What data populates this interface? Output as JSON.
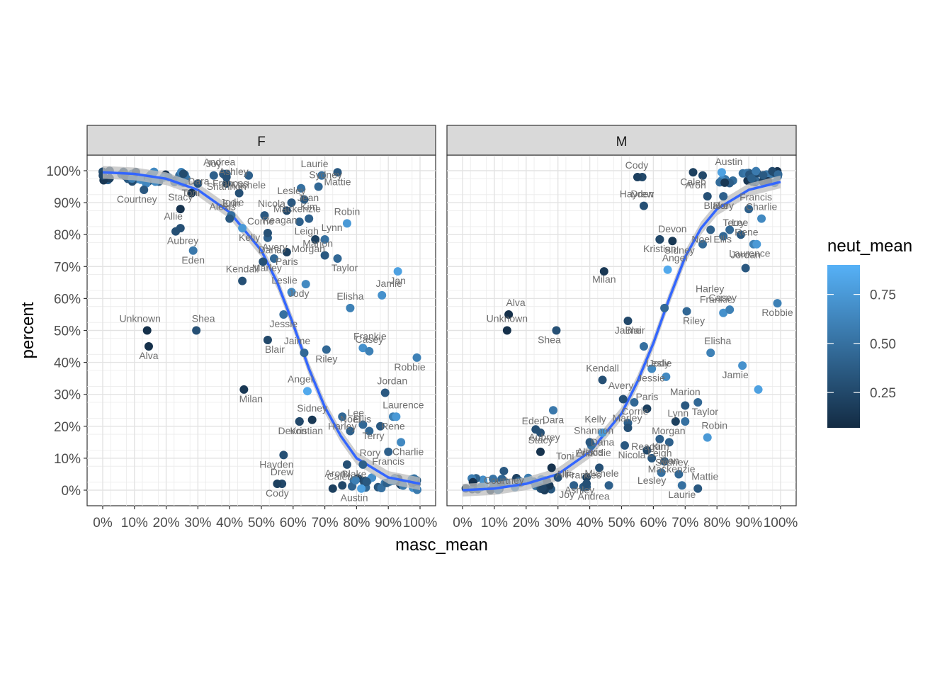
{
  "chart_data": {
    "type": "scatter",
    "xlabel": "masc_mean",
    "ylabel": "percent",
    "xlim": [
      0,
      1
    ],
    "ylim": [
      0,
      1
    ],
    "xticks": [
      "0%",
      "10%",
      "20%",
      "30%",
      "40%",
      "50%",
      "60%",
      "70%",
      "80%",
      "90%",
      "100%"
    ],
    "yticks": [
      "0%",
      "10%",
      "20%",
      "30%",
      "40%",
      "50%",
      "60%",
      "70%",
      "80%",
      "90%",
      "100%"
    ],
    "grid": true,
    "facets": [
      "F",
      "M"
    ],
    "legend": {
      "title": "neut_mean",
      "position": "right",
      "breaks": [
        "0.25",
        "0.50",
        "0.75"
      ],
      "break_values": [
        0.25,
        0.5,
        0.75
      ],
      "range": [
        0.07,
        0.9
      ],
      "color_low": "#132B43",
      "color_high": "#56B1F7"
    },
    "smooth": {
      "color": "#3366FF",
      "band_color": "#bdbdbd",
      "F": [
        [
          0.0,
          0.995
        ],
        [
          0.1,
          0.99
        ],
        [
          0.2,
          0.975
        ],
        [
          0.3,
          0.94
        ],
        [
          0.4,
          0.87
        ],
        [
          0.5,
          0.75
        ],
        [
          0.55,
          0.65
        ],
        [
          0.6,
          0.52
        ],
        [
          0.65,
          0.38
        ],
        [
          0.7,
          0.26
        ],
        [
          0.75,
          0.17
        ],
        [
          0.8,
          0.1
        ],
        [
          0.9,
          0.04
        ],
        [
          1.0,
          0.02
        ]
      ],
      "M": [
        [
          0.0,
          0.0
        ],
        [
          0.1,
          0.005
        ],
        [
          0.2,
          0.02
        ],
        [
          0.3,
          0.05
        ],
        [
          0.4,
          0.12
        ],
        [
          0.5,
          0.24
        ],
        [
          0.55,
          0.34
        ],
        [
          0.6,
          0.46
        ],
        [
          0.65,
          0.6
        ],
        [
          0.7,
          0.73
        ],
        [
          0.75,
          0.82
        ],
        [
          0.8,
          0.88
        ],
        [
          0.9,
          0.94
        ],
        [
          1.0,
          0.965
        ]
      ]
    },
    "labeled_points": [
      {
        "name": "Unknown",
        "x": 0.14,
        "y": 0.5,
        "neut": 0.1
      },
      {
        "name": "Alva",
        "x": 0.145,
        "y": 0.45,
        "neut": 0.1
      },
      {
        "name": "Shea",
        "x": 0.295,
        "y": 0.5,
        "neut": 0.3
      },
      {
        "name": "Courtney",
        "x": 0.13,
        "y": 0.94,
        "neut": 0.35
      },
      {
        "name": "Stacy",
        "x": 0.245,
        "y": 0.88,
        "neut": 0.12
      },
      {
        "name": "Aubrey",
        "x": 0.23,
        "y": 0.81,
        "neut": 0.3
      },
      {
        "name": "Allie",
        "x": 0.245,
        "y": 0.82,
        "neut": 0.3
      },
      {
        "name": "Eden",
        "x": 0.285,
        "y": 0.75,
        "neut": 0.55
      },
      {
        "name": "Dara",
        "x": 0.28,
        "y": 0.93,
        "neut": 0.12
      },
      {
        "name": "Toni",
        "x": 0.3,
        "y": 0.96,
        "neut": 0.3
      },
      {
        "name": "Joy",
        "x": 0.35,
        "y": 0.985,
        "neut": 0.4
      },
      {
        "name": "Frances",
        "x": 0.38,
        "y": 0.99,
        "neut": 0.35
      },
      {
        "name": "Andrea",
        "x": 0.39,
        "y": 0.99,
        "neut": 0.35
      },
      {
        "name": "Michele",
        "x": 0.46,
        "y": 0.985,
        "neut": 0.4
      },
      {
        "name": "Ashley",
        "x": 0.39,
        "y": 0.96,
        "neut": 0.2
      },
      {
        "name": "Jodie",
        "x": 0.43,
        "y": 0.93,
        "neut": 0.3
      },
      {
        "name": "Erin",
        "x": 0.405,
        "y": 0.86,
        "neut": 0.5
      },
      {
        "name": "Kelly",
        "x": 0.44,
        "y": 0.82,
        "neut": 0.75
      },
      {
        "name": "Alexis",
        "x": 0.4,
        "y": 0.85,
        "neut": 0.35
      },
      {
        "name": "Shannon",
        "x": 0.39,
        "y": 0.98,
        "neut": 0.3
      },
      {
        "name": "Dana",
        "x": 0.505,
        "y": 0.715,
        "neut": 0.3
      },
      {
        "name": "Marley",
        "x": 0.54,
        "y": 0.725,
        "neut": 0.45
      },
      {
        "name": "Kendall",
        "x": 0.44,
        "y": 0.655,
        "neut": 0.3
      },
      {
        "name": "Avery",
        "x": 0.52,
        "y": 0.79,
        "neut": 0.4
      },
      {
        "name": "Leslie",
        "x": 0.595,
        "y": 0.62,
        "neut": 0.65
      },
      {
        "name": "Jessie",
        "x": 0.57,
        "y": 0.55,
        "neut": 0.5
      },
      {
        "name": "Nicola",
        "x": 0.51,
        "y": 0.86,
        "neut": 0.35
      },
      {
        "name": "Reagan",
        "x": 0.58,
        "y": 0.875,
        "neut": 0.25
      },
      {
        "name": "Lesley",
        "x": 0.595,
        "y": 0.9,
        "neut": 0.35
      },
      {
        "name": "Jean",
        "x": 0.625,
        "y": 0.945,
        "neut": 0.5
      },
      {
        "name": "Laurie",
        "x": 0.69,
        "y": 0.985,
        "neut": 0.5
      },
      {
        "name": "Mattie",
        "x": 0.74,
        "y": 0.995,
        "neut": 0.35
      },
      {
        "name": "Sydney",
        "x": 0.68,
        "y": 0.95,
        "neut": 0.45
      },
      {
        "name": "Mackenzie",
        "x": 0.635,
        "y": 0.91,
        "neut": 0.35
      },
      {
        "name": "Kim",
        "x": 0.65,
        "y": 0.85,
        "neut": 0.4
      },
      {
        "name": "Leigh",
        "x": 0.62,
        "y": 0.84,
        "neut": 0.4
      },
      {
        "name": "Corrie",
        "x": 0.52,
        "y": 0.805,
        "neut": 0.3
      },
      {
        "name": "Paris",
        "x": 0.58,
        "y": 0.745,
        "neut": 0.2
      },
      {
        "name": "Lynn",
        "x": 0.7,
        "y": 0.785,
        "neut": 0.5
      },
      {
        "name": "Morgan",
        "x": 0.67,
        "y": 0.785,
        "neut": 0.2
      },
      {
        "name": "Robin",
        "x": 0.77,
        "y": 0.835,
        "neut": 0.75
      },
      {
        "name": "Taylor",
        "x": 0.74,
        "y": 0.725,
        "neut": 0.45
      },
      {
        "name": "Marion",
        "x": 0.7,
        "y": 0.735,
        "neut": 0.35
      },
      {
        "name": "Jan",
        "x": 0.93,
        "y": 0.685,
        "neut": 0.8
      },
      {
        "name": "Jamie",
        "x": 0.88,
        "y": 0.61,
        "neut": 0.7
      },
      {
        "name": "Jody",
        "x": 0.64,
        "y": 0.645,
        "neut": 0.65
      },
      {
        "name": "Elisha",
        "x": 0.78,
        "y": 0.57,
        "neut": 0.6
      },
      {
        "name": "Blair",
        "x": 0.52,
        "y": 0.47,
        "neut": 0.25
      },
      {
        "name": "Jaime",
        "x": 0.635,
        "y": 0.43,
        "neut": 0.45
      },
      {
        "name": "Riley",
        "x": 0.705,
        "y": 0.44,
        "neut": 0.45
      },
      {
        "name": "Frankie",
        "x": 0.82,
        "y": 0.445,
        "neut": 0.7
      },
      {
        "name": "Robbie",
        "x": 0.99,
        "y": 0.415,
        "neut": 0.6
      },
      {
        "name": "Casey",
        "x": 0.84,
        "y": 0.435,
        "neut": 0.6
      },
      {
        "name": "Milan",
        "x": 0.445,
        "y": 0.315,
        "neut": 0.15
      },
      {
        "name": "Angel",
        "x": 0.645,
        "y": 0.31,
        "neut": 0.85
      },
      {
        "name": "Harley",
        "x": 0.755,
        "y": 0.23,
        "neut": 0.45
      },
      {
        "name": "Jordan",
        "x": 0.89,
        "y": 0.305,
        "neut": 0.35
      },
      {
        "name": "Devon",
        "x": 0.62,
        "y": 0.215,
        "neut": 0.25
      },
      {
        "name": "Sidney",
        "x": 0.66,
        "y": 0.22,
        "neut": 0.15
      },
      {
        "name": "Kristian",
        "x": 0.62,
        "y": 0.215,
        "neut": 0.25
      },
      {
        "name": "Lee",
        "x": 0.82,
        "y": 0.205,
        "neut": 0.45
      },
      {
        "name": "Rene",
        "x": 0.915,
        "y": 0.23,
        "neut": 0.6
      },
      {
        "name": "Laurence",
        "x": 0.925,
        "y": 0.23,
        "neut": 0.75
      },
      {
        "name": "Terry",
        "x": 0.875,
        "y": 0.2,
        "neut": 0.35
      },
      {
        "name": "Noel",
        "x": 0.78,
        "y": 0.185,
        "neut": 0.4
      },
      {
        "name": "Charlie",
        "x": 0.94,
        "y": 0.15,
        "neut": 0.65
      },
      {
        "name": "Ellis",
        "x": 0.84,
        "y": 0.185,
        "neut": 0.45
      },
      {
        "name": "Francis",
        "x": 0.9,
        "y": 0.12,
        "neut": 0.4
      },
      {
        "name": "Rory",
        "x": 0.82,
        "y": 0.08,
        "neut": 0.4
      },
      {
        "name": "Hayden",
        "x": 0.57,
        "y": 0.11,
        "neut": 0.3
      },
      {
        "name": "Drew",
        "x": 0.565,
        "y": 0.02,
        "neut": 0.25
      },
      {
        "name": "Blake",
        "x": 0.77,
        "y": 0.08,
        "neut": 0.3
      },
      {
        "name": "Aron",
        "x": 0.755,
        "y": 0.015,
        "neut": 0.25
      },
      {
        "name": "Cody",
        "x": 0.55,
        "y": 0.02,
        "neut": 0.2
      },
      {
        "name": "Caleb",
        "x": 0.725,
        "y": 0.005,
        "neut": 0.2
      },
      {
        "name": "Austin",
        "x": 0.815,
        "y": 0.005,
        "neut": 0.8
      }
    ],
    "m_labels": [
      {
        "name": "Cody",
        "x": 0.57,
        "y": 0.98
      },
      {
        "name": "Caleb",
        "x": 0.725,
        "y": 0.995
      },
      {
        "name": "Austin",
        "x": 0.815,
        "y": 0.995
      },
      {
        "name": "Aron",
        "x": 0.755,
        "y": 0.985
      },
      {
        "name": "Drew",
        "x": 0.565,
        "y": 0.89
      },
      {
        "name": "Blake",
        "x": 0.775,
        "y": 0.92
      },
      {
        "name": "Hayden",
        "x": 0.57,
        "y": 0.89
      },
      {
        "name": "Rory",
        "x": 0.82,
        "y": 0.92
      },
      {
        "name": "Francis",
        "x": 0.9,
        "y": 0.88
      },
      {
        "name": "Ellis",
        "x": 0.84,
        "y": 0.815
      },
      {
        "name": "Charlie",
        "x": 0.94,
        "y": 0.85
      },
      {
        "name": "Noel",
        "x": 0.73,
        "y": 0.815
      },
      {
        "name": "Terry",
        "x": 0.875,
        "y": 0.8
      },
      {
        "name": "Kristian",
        "x": 0.62,
        "y": 0.785
      },
      {
        "name": "Lee",
        "x": 0.85,
        "y": 0.8
      },
      {
        "name": "Laurence",
        "x": 0.925,
        "y": 0.77
      },
      {
        "name": "Devon",
        "x": 0.66,
        "y": 0.78
      },
      {
        "name": "Sidney",
        "x": 0.66,
        "y": 0.78
      },
      {
        "name": "Rene",
        "x": 0.915,
        "y": 0.77
      },
      {
        "name": "Milan",
        "x": 0.445,
        "y": 0.69
      },
      {
        "name": "Angel",
        "x": 0.645,
        "y": 0.69
      },
      {
        "name": "Harley",
        "x": 0.8,
        "y": 0.66
      },
      {
        "name": "Jordan",
        "x": 0.89,
        "y": 0.7
      },
      {
        "name": "Riley",
        "x": 0.705,
        "y": 0.56
      },
      {
        "name": "Casey",
        "x": 0.84,
        "y": 0.565
      },
      {
        "name": "Jaime",
        "x": 0.52,
        "y": 0.53
      },
      {
        "name": "Alva",
        "x": 0.145,
        "y": 0.55
      },
      {
        "name": "Shea",
        "x": 0.295,
        "y": 0.5
      },
      {
        "name": "Unknown",
        "x": 0.14,
        "y": 0.5
      },
      {
        "name": "Blair",
        "x": 0.52,
        "y": 0.53
      },
      {
        "name": "Frankie",
        "x": 0.82,
        "y": 0.56
      },
      {
        "name": "Robbie",
        "x": 0.99,
        "y": 0.585
      },
      {
        "name": "Elisha",
        "x": 0.78,
        "y": 0.43
      },
      {
        "name": "Jamie",
        "x": 0.88,
        "y": 0.39
      },
      {
        "name": "Kendall",
        "x": 0.44,
        "y": 0.345
      },
      {
        "name": "Jessie",
        "x": 0.57,
        "y": 0.38
      },
      {
        "name": "Jody",
        "x": 0.64,
        "y": 0.36
      },
      {
        "name": "Alexis",
        "x": 0.4,
        "y": 0.15
      },
      {
        "name": "Leslie",
        "x": 0.595,
        "y": 0.36
      },
      {
        "name": "Lynn",
        "x": 0.7,
        "y": 0.27
      },
      {
        "name": "Marion",
        "x": 0.7,
        "y": 0.27
      },
      {
        "name": "Taylor",
        "x": 0.74,
        "y": 0.275
      },
      {
        "name": "Avery",
        "x": 0.52,
        "y": 0.29
      },
      {
        "name": "Dara",
        "x": 0.285,
        "y": 0.25
      },
      {
        "name": "Shannon",
        "x": 0.39,
        "y": 0.15
      },
      {
        "name": "Marley",
        "x": 0.54,
        "y": 0.255
      },
      {
        "name": "Paris",
        "x": 0.58,
        "y": 0.255
      },
      {
        "name": "Aubrey",
        "x": 0.235,
        "y": 0.195
      },
      {
        "name": "Eden",
        "x": 0.245,
        "y": 0.18
      },
      {
        "name": "Dana",
        "x": 0.44,
        "y": 0.18
      },
      {
        "name": "Corrie",
        "x": 0.52,
        "y": 0.21
      },
      {
        "name": "Morgan",
        "x": 0.67,
        "y": 0.215
      },
      {
        "name": "Stacy",
        "x": 0.245,
        "y": 0.12
      },
      {
        "name": "Allie",
        "x": 0.3,
        "y": 0.08
      },
      {
        "name": "Kelly",
        "x": 0.44,
        "y": 0.185
      },
      {
        "name": "Leigh",
        "x": 0.62,
        "y": 0.145
      },
      {
        "name": "Robin",
        "x": 0.77,
        "y": 0.165
      },
      {
        "name": "Erin",
        "x": 0.405,
        "y": 0.145
      },
      {
        "name": "Jodie",
        "x": 0.43,
        "y": 0.08
      },
      {
        "name": "Nicola",
        "x": 0.51,
        "y": 0.14
      },
      {
        "name": "Kim",
        "x": 0.645,
        "y": 0.1
      },
      {
        "name": "Courtney",
        "x": 0.13,
        "y": 0.06
      },
      {
        "name": "Toni",
        "x": 0.3,
        "y": 0.07
      },
      {
        "name": "Ashley",
        "x": 0.39,
        "y": 0.03
      },
      {
        "name": "Reagan",
        "x": 0.585,
        "y": 0.1
      },
      {
        "name": "Mackenzie",
        "x": 0.635,
        "y": 0.095
      },
      {
        "name": "Sydney",
        "x": 0.68,
        "y": 0.05
      },
      {
        "name": "Lesley",
        "x": 0.595,
        "y": 0.06
      },
      {
        "name": "Jean",
        "x": 0.625,
        "y": 0.055
      },
      {
        "name": "Joy",
        "x": 0.35,
        "y": 0.015
      },
      {
        "name": "Frances",
        "x": 0.38,
        "y": 0.01
      },
      {
        "name": "Andrea",
        "x": 0.39,
        "y": 0.01
      },
      {
        "name": "Michele",
        "x": 0.46,
        "y": 0.015
      },
      {
        "name": "Laurie",
        "x": 0.69,
        "y": 0.015
      },
      {
        "name": "Mattie",
        "x": 0.74,
        "y": 0.005
      }
    ]
  }
}
